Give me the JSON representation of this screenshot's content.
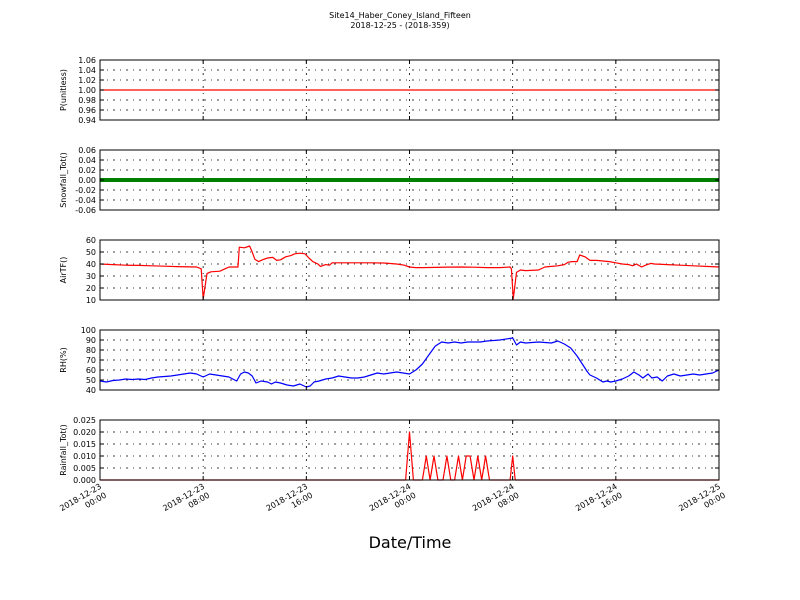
{
  "title": "Site14_Haber_Coney_Island_Fifteen",
  "subtitle": "2018-12-25 - (2018-359)",
  "xlabel": "Date/Time",
  "chart_data": {
    "type": "line",
    "xlim": [
      "2018-12-23 00:00",
      "2018-12-25 00:00"
    ],
    "x_ticks": [
      {
        "line1": "2018-12-23",
        "line2": "00:00",
        "hour": 0
      },
      {
        "line1": "2018-12-23",
        "line2": "08:00",
        "hour": 8
      },
      {
        "line1": "2018-12-23",
        "line2": "16:00",
        "hour": 16
      },
      {
        "line1": "2018-12-24",
        "line2": "00:00",
        "hour": 24
      },
      {
        "line1": "2018-12-24",
        "line2": "08:00",
        "hour": 32
      },
      {
        "line1": "2018-12-24",
        "line2": "16:00",
        "hour": 40
      },
      {
        "line1": "2018-12-25",
        "line2": "00:00",
        "hour": 48
      }
    ],
    "grid": true,
    "panels": [
      {
        "ylabel": "P(unitless)",
        "ylim": [
          0.94,
          1.06
        ],
        "yticks": [
          "0.94",
          "0.96",
          "0.98",
          "1.00",
          "1.02",
          "1.04",
          "1.06"
        ],
        "color": "#ff0000",
        "style": "line",
        "series": [
          [
            0,
            1.0
          ],
          [
            48,
            1.0
          ]
        ]
      },
      {
        "ylabel": "Snowfall_Tot()",
        "ylim": [
          -0.06,
          0.06
        ],
        "yticks": [
          "-0.06",
          "-0.04",
          "-0.02",
          "0.00",
          "0.02",
          "0.04",
          "0.06"
        ],
        "color": "#008000",
        "style": "thick",
        "series": [
          [
            0,
            0.0
          ],
          [
            48,
            0.0
          ]
        ]
      },
      {
        "ylabel": "AirTF()",
        "ylim": [
          10,
          60
        ],
        "yticks": [
          "10",
          "20",
          "30",
          "40",
          "50",
          "60"
        ],
        "color": "#ff0000",
        "style": "line",
        "series": [
          [
            0,
            40
          ],
          [
            1,
            39.5
          ],
          [
            2,
            39
          ],
          [
            3,
            38.8
          ],
          [
            4,
            38.5
          ],
          [
            5,
            38.2
          ],
          [
            6,
            37.8
          ],
          [
            7.5,
            37.5
          ],
          [
            7.85,
            36
          ],
          [
            8.0,
            11
          ],
          [
            8.3,
            32
          ],
          [
            8.6,
            33.5
          ],
          [
            9.3,
            34
          ],
          [
            9.8,
            36.5
          ],
          [
            10,
            37.5
          ],
          [
            10.7,
            37.5
          ],
          [
            10.8,
            54
          ],
          [
            11.2,
            53.5
          ],
          [
            11.6,
            55
          ],
          [
            11.8,
            50
          ],
          [
            12.0,
            44
          ],
          [
            12.3,
            42
          ],
          [
            12.6,
            43.5
          ],
          [
            13,
            45
          ],
          [
            13.4,
            45.5
          ],
          [
            13.7,
            43
          ],
          [
            14,
            43.5
          ],
          [
            14.4,
            46
          ],
          [
            14.8,
            47
          ],
          [
            15.1,
            48.5
          ],
          [
            15.5,
            49
          ],
          [
            15.9,
            48.5
          ],
          [
            16.2,
            45
          ],
          [
            16.5,
            42
          ],
          [
            16.9,
            40
          ],
          [
            17.1,
            38
          ],
          [
            17.5,
            39.5
          ],
          [
            17.8,
            39
          ],
          [
            18,
            41
          ],
          [
            19,
            41
          ],
          [
            20,
            41
          ],
          [
            21,
            41
          ],
          [
            22,
            40.8
          ],
          [
            23,
            40
          ],
          [
            23.6,
            39
          ],
          [
            24,
            37.5
          ],
          [
            24.5,
            37
          ],
          [
            25,
            37
          ],
          [
            26,
            37.2
          ],
          [
            27,
            37.4
          ],
          [
            28,
            37.5
          ],
          [
            29,
            37.3
          ],
          [
            30,
            37
          ],
          [
            31,
            37
          ],
          [
            31.8,
            37.5
          ],
          [
            31.9,
            36
          ],
          [
            32.05,
            11
          ],
          [
            32.3,
            33
          ],
          [
            32.6,
            35
          ],
          [
            33,
            34.5
          ],
          [
            34,
            35
          ],
          [
            34.5,
            37.5
          ],
          [
            35,
            38
          ],
          [
            35.5,
            38.5
          ],
          [
            36,
            39.5
          ],
          [
            36.3,
            41.5
          ],
          [
            36.6,
            42
          ],
          [
            37,
            42
          ],
          [
            37.2,
            47.5
          ],
          [
            37.6,
            46
          ],
          [
            38,
            43
          ],
          [
            38.5,
            43
          ],
          [
            39,
            42.5
          ],
          [
            39.5,
            42
          ],
          [
            40,
            41
          ],
          [
            40.5,
            40
          ],
          [
            41,
            39.5
          ],
          [
            41.3,
            38.5
          ],
          [
            41.6,
            40
          ],
          [
            42,
            37.5
          ],
          [
            42.3,
            39
          ],
          [
            42.7,
            40.5
          ],
          [
            43,
            40
          ],
          [
            44,
            39.5
          ],
          [
            45,
            39
          ],
          [
            46,
            38.5
          ],
          [
            47,
            38
          ],
          [
            48,
            37.5
          ]
        ]
      },
      {
        "ylabel": "RH(%)",
        "ylim": [
          40,
          100
        ],
        "yticks": [
          "40",
          "50",
          "60",
          "70",
          "80",
          "90",
          "100"
        ],
        "color": "#0000ff",
        "style": "line",
        "series": [
          [
            0,
            49
          ],
          [
            0.5,
            48
          ],
          [
            1,
            49.5
          ],
          [
            1.5,
            50
          ],
          [
            2,
            51
          ],
          [
            2.5,
            50.5
          ],
          [
            3,
            51
          ],
          [
            3.5,
            50.5
          ],
          [
            4,
            52
          ],
          [
            4.5,
            53
          ],
          [
            5,
            53.5
          ],
          [
            5.5,
            54
          ],
          [
            6,
            55
          ],
          [
            6.5,
            56
          ],
          [
            7,
            57
          ],
          [
            7.5,
            56
          ],
          [
            8,
            53
          ],
          [
            8.5,
            56
          ],
          [
            9,
            55
          ],
          [
            9.5,
            54
          ],
          [
            10,
            53
          ],
          [
            10.3,
            51
          ],
          [
            10.6,
            49
          ],
          [
            10.9,
            56
          ],
          [
            11.2,
            58
          ],
          [
            11.5,
            57
          ],
          [
            11.8,
            54
          ],
          [
            12.1,
            47
          ],
          [
            12.5,
            49
          ],
          [
            13,
            48
          ],
          [
            13.3,
            46
          ],
          [
            13.6,
            48
          ],
          [
            14,
            47
          ],
          [
            14.5,
            45
          ],
          [
            15,
            44
          ],
          [
            15.5,
            46
          ],
          [
            16,
            43
          ],
          [
            16.3,
            44
          ],
          [
            16.6,
            48
          ],
          [
            17,
            49
          ],
          [
            17.5,
            51
          ],
          [
            18,
            52
          ],
          [
            18.5,
            54
          ],
          [
            19,
            53
          ],
          [
            19.5,
            52
          ],
          [
            20,
            52
          ],
          [
            20.5,
            53
          ],
          [
            21,
            55
          ],
          [
            21.5,
            57
          ],
          [
            22,
            56
          ],
          [
            22.5,
            57
          ],
          [
            23,
            58
          ],
          [
            23.5,
            57
          ],
          [
            24,
            56
          ],
          [
            24.5,
            60
          ],
          [
            25,
            66
          ],
          [
            25.5,
            75
          ],
          [
            26,
            84
          ],
          [
            26.5,
            88
          ],
          [
            27,
            87
          ],
          [
            27.5,
            88
          ],
          [
            28,
            87
          ],
          [
            28.5,
            88
          ],
          [
            29,
            88
          ],
          [
            29.5,
            88
          ],
          [
            30,
            89
          ],
          [
            31,
            90
          ],
          [
            32,
            92
          ],
          [
            32.3,
            85
          ],
          [
            32.6,
            88
          ],
          [
            33,
            87
          ],
          [
            34,
            88
          ],
          [
            35,
            87
          ],
          [
            35.5,
            89
          ],
          [
            36,
            86
          ],
          [
            36.5,
            82
          ],
          [
            37,
            74
          ],
          [
            37.4,
            66
          ],
          [
            37.8,
            58
          ],
          [
            38,
            55
          ],
          [
            38.5,
            52
          ],
          [
            39,
            48
          ],
          [
            39.3,
            49
          ],
          [
            39.6,
            48
          ],
          [
            40,
            49
          ],
          [
            40.5,
            51
          ],
          [
            41,
            54
          ],
          [
            41.4,
            58
          ],
          [
            41.8,
            55
          ],
          [
            42.1,
            52
          ],
          [
            42.5,
            56
          ],
          [
            42.8,
            52
          ],
          [
            43.2,
            53
          ],
          [
            43.6,
            49
          ],
          [
            44,
            54
          ],
          [
            44.5,
            56
          ],
          [
            45,
            54
          ],
          [
            45.5,
            55
          ],
          [
            46,
            56
          ],
          [
            46.5,
            55
          ],
          [
            47,
            56
          ],
          [
            47.5,
            57
          ],
          [
            48,
            60
          ]
        ]
      },
      {
        "ylabel": "Rainfall_Tot()",
        "ylim": [
          0.0,
          0.025
        ],
        "yticks": [
          "0.000",
          "0.005",
          "0.010",
          "0.015",
          "0.020",
          "0.025"
        ],
        "color": "#ff0000",
        "style": "line",
        "series": [
          [
            0,
            0
          ],
          [
            23.7,
            0
          ],
          [
            24,
            0.02
          ],
          [
            24.3,
            0
          ],
          [
            25,
            0
          ],
          [
            25.3,
            0.01
          ],
          [
            25.6,
            0
          ],
          [
            25.9,
            0.01
          ],
          [
            26.2,
            0
          ],
          [
            26.6,
            0
          ],
          [
            26.9,
            0.01
          ],
          [
            27.2,
            0
          ],
          [
            27.5,
            0
          ],
          [
            27.8,
            0.01
          ],
          [
            28.1,
            0
          ],
          [
            28.4,
            0.01
          ],
          [
            28.7,
            0.01
          ],
          [
            29.0,
            0
          ],
          [
            29.3,
            0.01
          ],
          [
            29.6,
            0
          ],
          [
            29.9,
            0.01
          ],
          [
            30.2,
            0
          ],
          [
            31.8,
            0
          ],
          [
            32.0,
            0.01
          ],
          [
            32.2,
            0
          ],
          [
            48,
            0
          ]
        ]
      }
    ]
  }
}
